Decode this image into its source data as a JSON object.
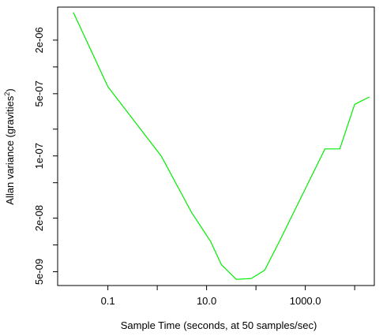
{
  "chart_data": {
    "type": "line",
    "x_scale": "log",
    "y_scale": "log",
    "xlabel": "Sample Time (seconds, at 50 samples/sec)",
    "ylabel_main": "Allan variance (gravities",
    "ylabel_sup": "2",
    "ylabel_close": ")",
    "xlim": [
      0.0096,
      25000
    ],
    "ylim": [
      3.5e-09,
      4.7e-06
    ],
    "x_ticks": [
      {
        "value": 0.1,
        "label": "0.1"
      },
      {
        "value": 10,
        "label": "10.0"
      },
      {
        "value": 1000,
        "label": "1000.0"
      }
    ],
    "x_minor_ticks": [
      1,
      100,
      10000
    ],
    "y_ticks": [
      {
        "value": 5e-09,
        "label": "5e-09"
      },
      {
        "value": 2e-08,
        "label": "2e-08"
      },
      {
        "value": 1e-07,
        "label": "1e-07"
      },
      {
        "value": 5e-07,
        "label": "5e-07"
      },
      {
        "value": 2e-06,
        "label": "2e-06"
      }
    ],
    "y_minor_ticks": [
      1e-08,
      5e-08,
      2e-07,
      1e-06
    ],
    "grid": false,
    "series": [
      {
        "color": "#00ee00",
        "x": [
          0.02,
          0.1,
          1.2,
          5,
          12,
          20,
          40,
          80,
          150,
          300,
          2500,
          5000,
          10000,
          20000
        ],
        "y": [
          4.1e-06,
          6e-07,
          1e-07,
          2.3e-08,
          1.1e-08,
          6e-09,
          4.1e-09,
          4.2e-09,
          5.2e-09,
          1.1e-08,
          1.2e-07,
          1.2e-07,
          3.8e-07,
          4.6e-07
        ]
      }
    ]
  }
}
